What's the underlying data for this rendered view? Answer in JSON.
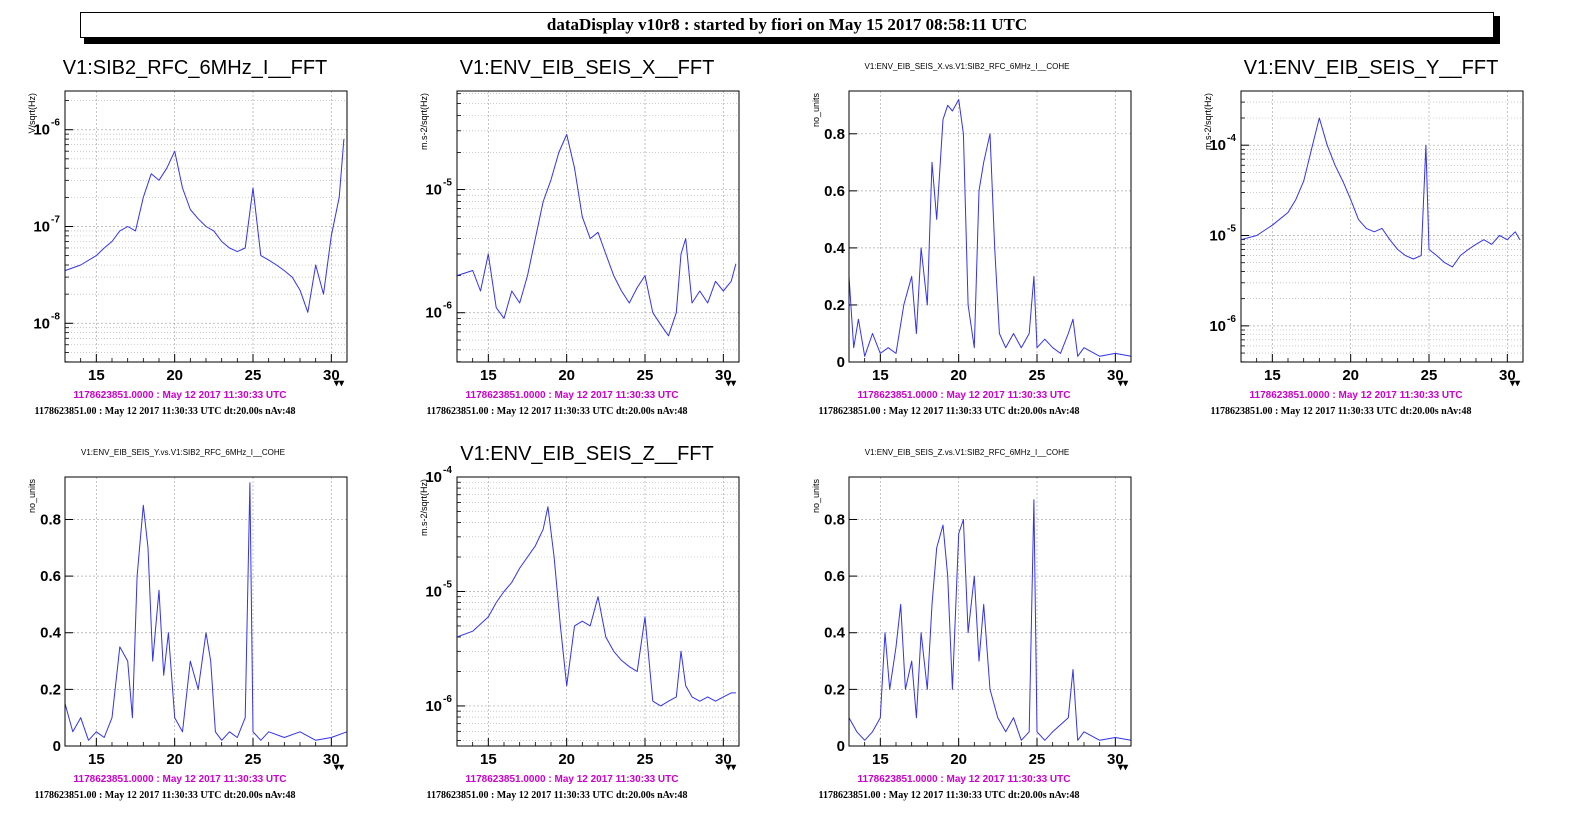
{
  "header": {
    "title": "dataDisplay v10r8 : started by fiori on May 15 2017 08:58:11 UTC"
  },
  "colors": {
    "trace": "#3333ee",
    "gps_text": "#cc00cc",
    "grid": "#aaaaaa"
  },
  "chart_data": [
    {
      "type": "line",
      "scale": "log",
      "title": "V1:SIB2_RFC_6MHz_I__FFT",
      "ylabel": "V/sqrt(Hz)",
      "xlim": [
        13,
        31
      ],
      "ylim_exp": [
        -8.4,
        -5.6
      ],
      "xticks": [
        15,
        20,
        25,
        30
      ],
      "yticks_exp": [
        -8,
        -7,
        -6
      ],
      "x": [
        13,
        14,
        15,
        15.5,
        16,
        16.5,
        17,
        17.5,
        18,
        18.5,
        19,
        19.5,
        20,
        20.5,
        21,
        21.5,
        22,
        22.5,
        23,
        23.5,
        24,
        24.5,
        25,
        25.5,
        26,
        26.5,
        27,
        27.5,
        28,
        28.5,
        29,
        29.5,
        30,
        30.5,
        30.8
      ],
      "y": [
        3.5e-08,
        4e-08,
        5e-08,
        6e-08,
        7e-08,
        9e-08,
        1e-07,
        9e-08,
        2e-07,
        3.5e-07,
        3e-07,
        4e-07,
        6e-07,
        2.5e-07,
        1.5e-07,
        1.2e-07,
        1e-07,
        9e-08,
        7e-08,
        6e-08,
        5.5e-08,
        6e-08,
        2.5e-07,
        5e-08,
        4.5e-08,
        4e-08,
        3.5e-08,
        3e-08,
        2.2e-08,
        1.3e-08,
        4e-08,
        2e-08,
        8e-08,
        2e-07,
        8e-07
      ],
      "gps_label": "1178623851.0000 : May 12 2017 11:30:33 UTC",
      "info": "1178623851.00 : May 12 2017 11:30:33 UTC dt:20.00s nAv:48"
    },
    {
      "type": "line",
      "scale": "log",
      "title": "V1:ENV_EIB_SEIS_X__FFT",
      "ylabel": "m.s-2/sqrt(Hz)",
      "xlim": [
        13,
        31
      ],
      "ylim_exp": [
        -6.4,
        -4.2
      ],
      "xticks": [
        15,
        20,
        25,
        30
      ],
      "yticks_exp": [
        -6,
        -5
      ],
      "x": [
        13,
        14,
        14.5,
        15,
        15.5,
        16,
        16.5,
        17,
        17.5,
        18,
        18.5,
        19,
        19.5,
        20,
        20.5,
        21,
        21.5,
        22,
        22.5,
        23,
        23.5,
        24,
        24.5,
        25,
        25.5,
        26,
        26.5,
        27,
        27.3,
        27.6,
        28,
        28.5,
        29,
        29.5,
        30,
        30.5,
        30.8
      ],
      "y": [
        2e-06,
        2.2e-06,
        1.5e-06,
        3e-06,
        1.1e-06,
        9e-07,
        1.5e-06,
        1.2e-06,
        2e-06,
        4e-06,
        8e-06,
        1.2e-05,
        2e-05,
        2.8e-05,
        1.5e-05,
        6e-06,
        4e-06,
        4.5e-06,
        3e-06,
        2e-06,
        1.5e-06,
        1.2e-06,
        1.6e-06,
        2e-06,
        1e-06,
        8e-07,
        6.5e-07,
        1e-06,
        3e-06,
        4e-06,
        1.2e-06,
        1.5e-06,
        1.2e-06,
        1.8e-06,
        1.5e-06,
        1.8e-06,
        2.5e-06
      ],
      "gps_label": "1178623851.0000 : May 12 2017 11:30:33 UTC",
      "info": "1178623851.00 : May 12 2017 11:30:33 UTC dt:20.00s nAv:48"
    },
    {
      "type": "line",
      "scale": "linear",
      "title": "V1:ENV_EIB_SEIS_X.vs.V1:SIB2_RFC_6MHz_I__COHE",
      "ylabel": "no_units",
      "xlim": [
        13,
        31
      ],
      "ylim": [
        0,
        0.95
      ],
      "xticks": [
        15,
        20,
        25,
        30
      ],
      "yticks": [
        0,
        0.2,
        0.4,
        0.6,
        0.8
      ],
      "x": [
        13,
        13.3,
        13.6,
        14,
        14.5,
        15,
        15.5,
        16,
        16.5,
        17,
        17.3,
        17.6,
        18,
        18.3,
        18.6,
        19,
        19.3,
        19.6,
        20,
        20.3,
        20.6,
        21,
        21.3,
        21.6,
        22,
        22.3,
        22.6,
        23,
        23.5,
        24,
        24.5,
        24.8,
        25,
        25.5,
        26,
        26.5,
        27,
        27.3,
        27.6,
        28,
        29,
        30,
        31
      ],
      "y": [
        0.3,
        0.05,
        0.15,
        0.02,
        0.1,
        0.03,
        0.05,
        0.03,
        0.2,
        0.3,
        0.1,
        0.4,
        0.2,
        0.7,
        0.5,
        0.85,
        0.9,
        0.88,
        0.92,
        0.8,
        0.2,
        0.05,
        0.6,
        0.7,
        0.8,
        0.4,
        0.1,
        0.05,
        0.1,
        0.05,
        0.1,
        0.3,
        0.05,
        0.08,
        0.05,
        0.03,
        0.1,
        0.15,
        0.02,
        0.05,
        0.02,
        0.03,
        0.02
      ],
      "gps_label": "1178623851.0000 : May 12 2017 11:30:33 UTC",
      "info": "1178623851.00 : May 12 2017 11:30:33 UTC dt:20.00s nAv:48"
    },
    {
      "type": "line",
      "scale": "log",
      "title": "V1:ENV_EIB_SEIS_Y__FFT",
      "ylabel": "m.s-2/sqrt(Hz)",
      "xlim": [
        13,
        31
      ],
      "ylim_exp": [
        -6.4,
        -3.4
      ],
      "xticks": [
        15,
        20,
        25,
        30
      ],
      "yticks_exp": [
        -6,
        -5,
        -4
      ],
      "x": [
        13,
        14,
        15,
        16,
        16.5,
        17,
        17.5,
        18,
        18.5,
        19,
        19.5,
        20,
        20.5,
        21,
        21.5,
        22,
        22.5,
        23,
        23.5,
        24,
        24.5,
        24.8,
        25,
        25.5,
        26,
        26.5,
        27,
        27.5,
        28,
        28.5,
        29,
        29.5,
        30,
        30.5,
        30.8
      ],
      "y": [
        9e-06,
        1e-05,
        1.3e-05,
        1.8e-05,
        2.5e-05,
        4e-05,
        9e-05,
        0.0002,
        0.0001,
        6e-05,
        4e-05,
        2.5e-05,
        1.5e-05,
        1.2e-05,
        1.1e-05,
        1.2e-05,
        9e-06,
        7e-06,
        6e-06,
        5.5e-06,
        6e-06,
        0.0001,
        7e-06,
        6e-06,
        5e-06,
        4.5e-06,
        6e-06,
        7e-06,
        8e-06,
        9e-06,
        8e-06,
        1e-05,
        9e-06,
        1.1e-05,
        9e-06
      ],
      "gps_label": "1178623851.0000 : May 12 2017 11:30:33 UTC",
      "info": "1178623851.00 : May 12 2017 11:30:33 UTC dt:20.00s nAv:48"
    },
    {
      "type": "line",
      "scale": "linear",
      "title": "V1:ENV_EIB_SEIS_Y.vs.V1:SIB2_RFC_6MHz_I__COHE",
      "ylabel": "no_units",
      "xlim": [
        13,
        31
      ],
      "ylim": [
        0,
        0.95
      ],
      "xticks": [
        15,
        20,
        25,
        30
      ],
      "yticks": [
        0,
        0.2,
        0.4,
        0.6,
        0.8
      ],
      "x": [
        13,
        13.5,
        14,
        14.5,
        15,
        15.5,
        16,
        16.5,
        17,
        17.3,
        17.6,
        18,
        18.3,
        18.6,
        19,
        19.3,
        19.6,
        20,
        20.5,
        21,
        21.5,
        22,
        22.3,
        22.6,
        23,
        23.5,
        24,
        24.5,
        24.8,
        25,
        25.5,
        26,
        27,
        28,
        29,
        30,
        31
      ],
      "y": [
        0.15,
        0.05,
        0.1,
        0.02,
        0.05,
        0.03,
        0.1,
        0.35,
        0.3,
        0.1,
        0.6,
        0.85,
        0.7,
        0.3,
        0.55,
        0.25,
        0.4,
        0.1,
        0.05,
        0.3,
        0.2,
        0.4,
        0.3,
        0.05,
        0.02,
        0.05,
        0.03,
        0.1,
        0.93,
        0.05,
        0.02,
        0.05,
        0.03,
        0.05,
        0.02,
        0.03,
        0.05
      ],
      "gps_label": "1178623851.0000 : May 12 2017 11:30:33 UTC",
      "info": "1178623851.00 : May 12 2017 11:30:33 UTC dt:20.00s nAv:48"
    },
    {
      "type": "line",
      "scale": "log",
      "title": "V1:ENV_EIB_SEIS_Z__FFT",
      "ylabel": "m.s-2/sqrt(Hz)",
      "xlim": [
        13,
        31
      ],
      "ylim_exp": [
        -6.35,
        -4.0
      ],
      "xticks": [
        15,
        20,
        25,
        30
      ],
      "yticks_exp": [
        -6,
        -5,
        -4
      ],
      "x": [
        13,
        14,
        15,
        15.5,
        16,
        16.5,
        17,
        17.5,
        18,
        18.5,
        18.8,
        19.2,
        19.6,
        20,
        20.5,
        21,
        21.5,
        22,
        22.5,
        23,
        23.5,
        24,
        24.5,
        25,
        25.5,
        26,
        26.5,
        27,
        27.3,
        27.6,
        28,
        28.5,
        29,
        29.5,
        30,
        30.5,
        30.8
      ],
      "y": [
        4e-06,
        4.5e-06,
        6e-06,
        8e-06,
        1e-05,
        1.2e-05,
        1.6e-05,
        2e-05,
        2.5e-05,
        3.5e-05,
        5.5e-05,
        2e-05,
        5e-06,
        1.5e-06,
        5e-06,
        5.5e-06,
        5e-06,
        9e-06,
        4e-06,
        3e-06,
        2.5e-06,
        2.2e-06,
        2e-06,
        6e-06,
        1.1e-06,
        1e-06,
        1.1e-06,
        1.2e-06,
        3e-06,
        1.5e-06,
        1.2e-06,
        1.1e-06,
        1.2e-06,
        1.1e-06,
        1.2e-06,
        1.3e-06,
        1.3e-06
      ],
      "gps_label": "1178623851.0000 : May 12 2017 11:30:33 UTC",
      "info": "1178623851.00 : May 12 2017 11:30:33 UTC dt:20.00s nAv:48"
    },
    {
      "type": "line",
      "scale": "linear",
      "title": "V1:ENV_EIB_SEIS_Z.vs.V1:SIB2_RFC_6MHz_I__COHE",
      "ylabel": "no_units",
      "xlim": [
        13,
        31
      ],
      "ylim": [
        0,
        0.95
      ],
      "xticks": [
        15,
        20,
        25,
        30
      ],
      "yticks": [
        0,
        0.2,
        0.4,
        0.6,
        0.8
      ],
      "x": [
        13,
        13.5,
        14,
        14.5,
        15,
        15.3,
        15.6,
        16,
        16.3,
        16.6,
        17,
        17.3,
        17.6,
        18,
        18.3,
        18.6,
        19,
        19.3,
        19.6,
        20,
        20.3,
        20.6,
        21,
        21.3,
        21.6,
        22,
        22.5,
        23,
        23.5,
        24,
        24.5,
        24.8,
        25,
        25.5,
        26,
        27,
        27.3,
        27.6,
        28,
        29,
        30,
        31
      ],
      "y": [
        0.1,
        0.05,
        0.02,
        0.05,
        0.1,
        0.4,
        0.2,
        0.35,
        0.5,
        0.2,
        0.3,
        0.1,
        0.4,
        0.2,
        0.5,
        0.7,
        0.78,
        0.6,
        0.2,
        0.75,
        0.8,
        0.4,
        0.6,
        0.3,
        0.5,
        0.2,
        0.1,
        0.05,
        0.1,
        0.02,
        0.05,
        0.87,
        0.05,
        0.02,
        0.05,
        0.1,
        0.27,
        0.02,
        0.05,
        0.02,
        0.03,
        0.02
      ],
      "gps_label": "1178623851.0000 : May 12 2017 11:30:33 UTC",
      "info": "1178623851.00 : May 12 2017 11:30:33 UTC dt:20.00s nAv:48"
    }
  ]
}
